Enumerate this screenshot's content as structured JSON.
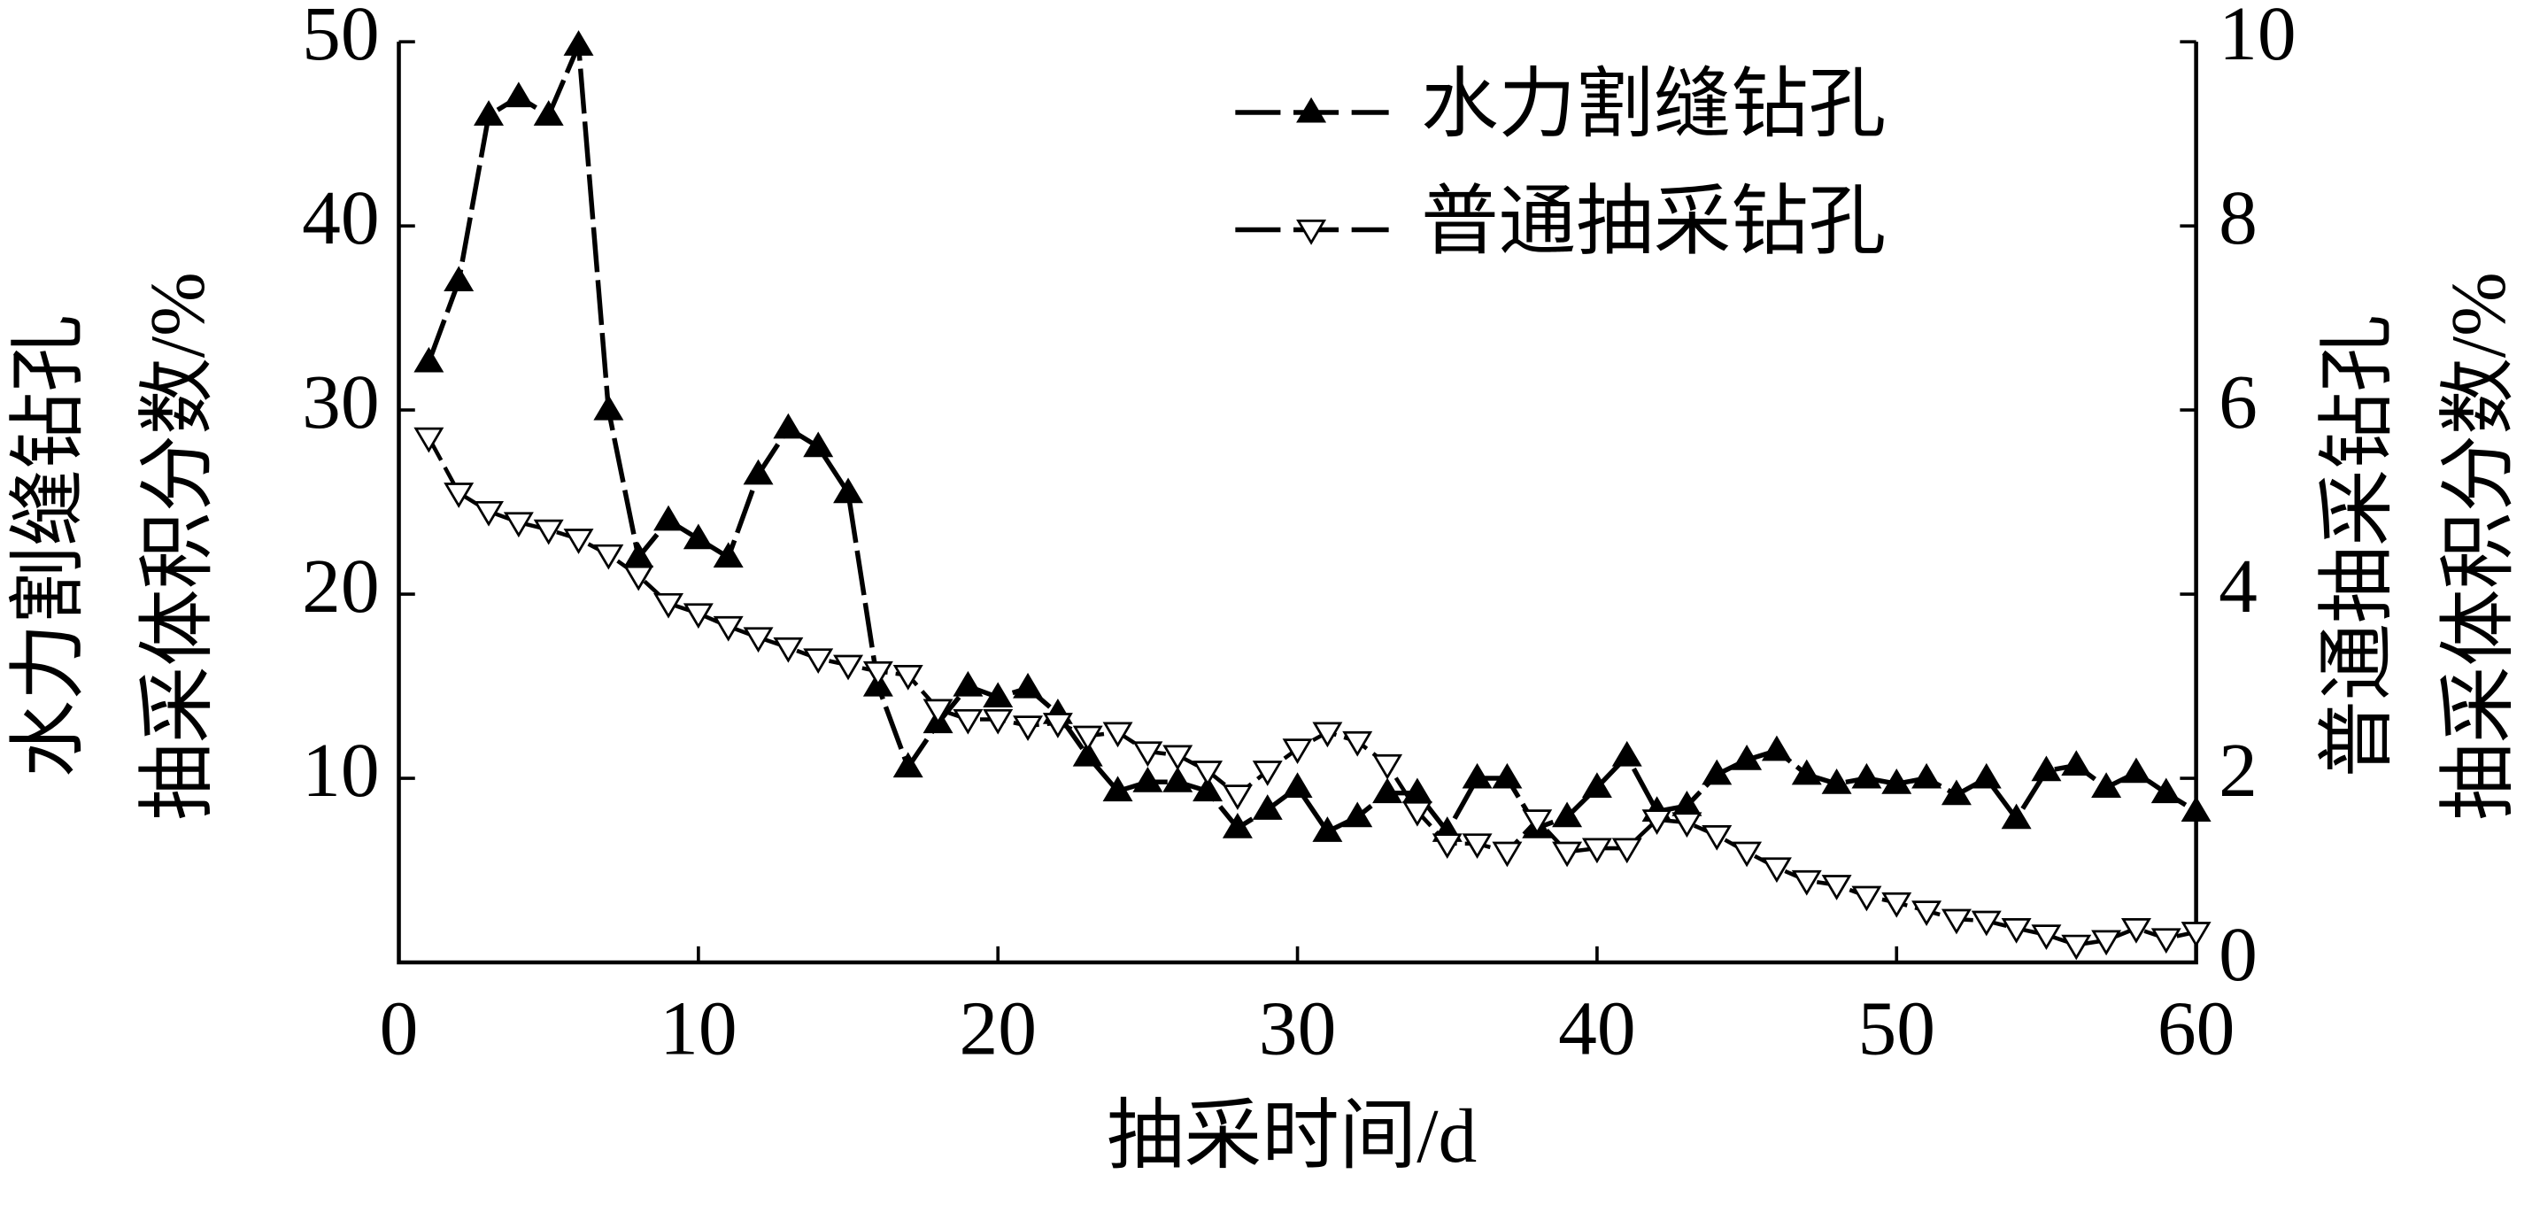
{
  "chart_data": {
    "type": "line",
    "xlabel": "抽采时间/d",
    "ylabel": [
      "水力割缝钻孔",
      "抽采体积分数/%"
    ],
    "y2label": [
      "普通抽采钻孔",
      "抽采体积分数/%"
    ],
    "x": [
      1,
      2,
      3,
      4,
      5,
      6,
      7,
      8,
      9,
      10,
      11,
      12,
      13,
      14,
      15,
      16,
      17,
      18,
      19,
      20,
      21,
      22,
      23,
      24,
      25,
      26,
      27,
      28,
      29,
      30,
      31,
      32,
      33,
      34,
      35,
      36,
      37,
      38,
      39,
      40,
      41,
      42,
      43,
      44,
      45,
      46,
      47,
      48,
      49,
      50,
      51,
      52,
      53,
      54,
      55,
      56,
      57,
      58,
      59,
      60
    ],
    "series": [
      {
        "name": "水力割缝钻孔",
        "color": "#000000",
        "marker": "triangle-up-filled",
        "axis": "y",
        "values": [
          32.6,
          37,
          46,
          47,
          46,
          49.8,
          30,
          22,
          24,
          23,
          22,
          26.5,
          29,
          28,
          25.5,
          15,
          10.6,
          13,
          15,
          14.4,
          14.9,
          13.5,
          11.2,
          9.3,
          9.8,
          9.8,
          9.3,
          7.3,
          8.3,
          9.5,
          7.1,
          7.9,
          9.2,
          9.2,
          7.1,
          10,
          10,
          7.3,
          7.9,
          9.5,
          11.2,
          8.2,
          8.5,
          10.2,
          11,
          11.5,
          10.2,
          9.7,
          10,
          9.7,
          10,
          9.1,
          10,
          7.8,
          10.4,
          10.7,
          9.5,
          10.3,
          9.2,
          8.2
        ]
      },
      {
        "name": "普通抽采钻孔",
        "color": "#000000",
        "marker": "triangle-down-open",
        "axis": "y2",
        "values": [
          5.7,
          5.1,
          4.9,
          4.78,
          4.7,
          4.6,
          4.43,
          4.2,
          3.9,
          3.79,
          3.65,
          3.53,
          3.42,
          3.3,
          3.23,
          3.16,
          3.12,
          2.75,
          2.64,
          2.64,
          2.57,
          2.6,
          2.46,
          2.5,
          2.29,
          2.25,
          2.08,
          1.82,
          2.08,
          2.32,
          2.5,
          2.4,
          2.15,
          1.64,
          1.29,
          1.29,
          1.2,
          1.55,
          1.2,
          1.24,
          1.24,
          1.55,
          1.52,
          1.38,
          1.2,
          1.03,
          0.89,
          0.84,
          0.72,
          0.65,
          0.56,
          0.47,
          0.45,
          0.37,
          0.3,
          0.19,
          0.24,
          0.37,
          0.26,
          0.33
        ]
      }
    ],
    "xlim": [
      0,
      60
    ],
    "xticks": [
      0,
      10,
      20,
      30,
      40,
      50,
      60
    ],
    "ylim": [
      0,
      50
    ],
    "yticks": [
      10,
      20,
      30,
      40,
      50
    ],
    "y2lim": [
      0,
      10
    ],
    "y2ticks": [
      0,
      2,
      4,
      6,
      8,
      10
    ],
    "legend": "upper right",
    "grid": false
  }
}
